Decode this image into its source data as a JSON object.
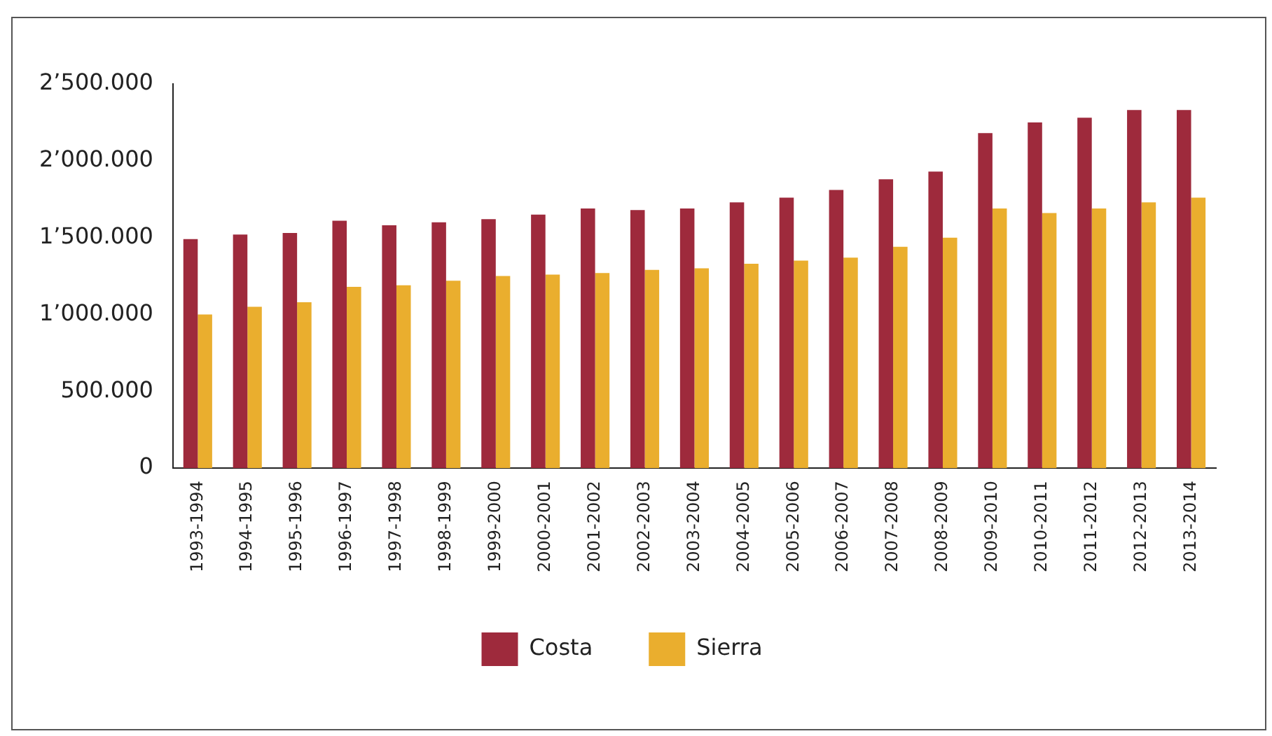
{
  "chart_data": {
    "type": "bar",
    "categories": [
      "1993-1994",
      "1994-1995",
      "1995-1996",
      "1996-1997",
      "1997-1998",
      "1998-1999",
      "1999-2000",
      "2000-2001",
      "2001-2002",
      "2002-2003",
      "2003-2004",
      "2004-2005",
      "2005-2006",
      "2006-2007",
      "2007-2008",
      "2008-2009",
      "2009-2010",
      "2010-2011",
      "2011-2012",
      "2012-2013",
      "2013-2014"
    ],
    "series": [
      {
        "name": "Costa",
        "color": "#9e2a3c",
        "values": [
          1490000,
          1520000,
          1530000,
          1610000,
          1580000,
          1600000,
          1620000,
          1650000,
          1690000,
          1680000,
          1690000,
          1730000,
          1760000,
          1810000,
          1880000,
          1930000,
          2180000,
          2250000,
          2280000,
          2330000,
          2330000
        ]
      },
      {
        "name": "Sierra",
        "color": "#eaae2e",
        "values": [
          1000000,
          1050000,
          1080000,
          1180000,
          1190000,
          1220000,
          1250000,
          1260000,
          1270000,
          1290000,
          1300000,
          1330000,
          1350000,
          1370000,
          1440000,
          1500000,
          1690000,
          1660000,
          1690000,
          1730000,
          1760000
        ]
      }
    ],
    "ylim": [
      0,
      2500000
    ],
    "yticks": [
      0,
      {
        "value": 500000,
        "label": "500.000"
      },
      {
        "value": 1000000,
        "label": "1’000.000"
      },
      {
        "value": 1500000,
        "label": "1’500.000"
      },
      {
        "value": 2000000,
        "label": "2’000.000"
      },
      {
        "value": 2500000,
        "label": "2’500.000"
      }
    ],
    "grid": false,
    "legend": "bottom"
  }
}
